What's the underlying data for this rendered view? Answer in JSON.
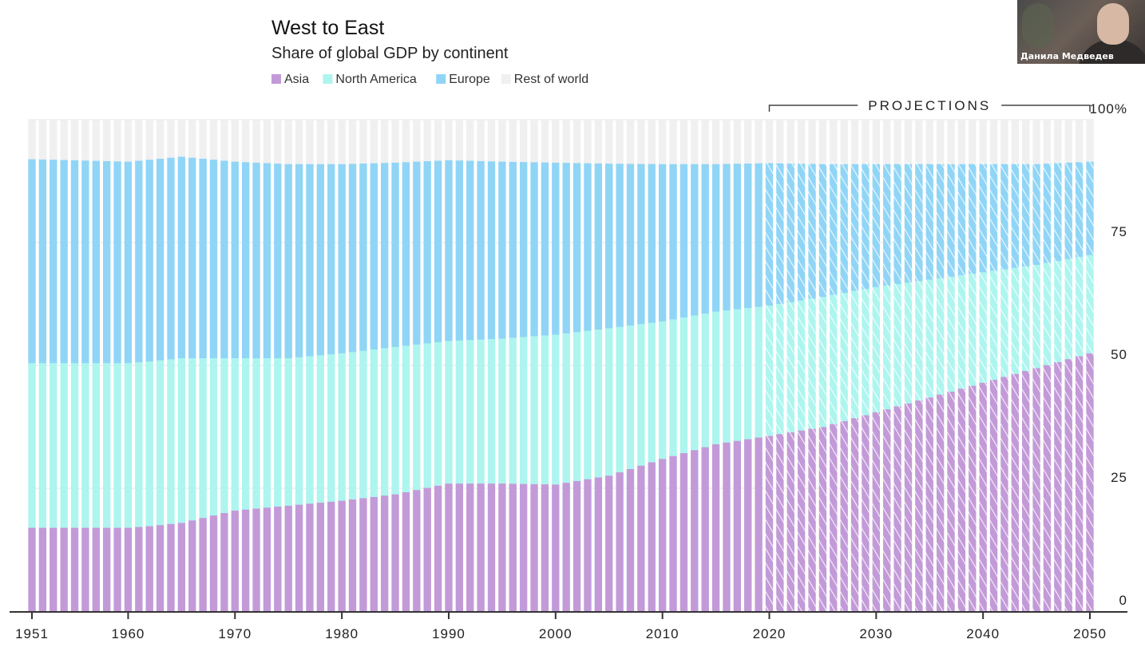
{
  "meeting": {
    "participant_name": "Данила Медведев"
  },
  "chart_data": {
    "type": "bar",
    "stacked": true,
    "title": "West to East",
    "subtitle": "Share of global GDP by continent",
    "annotation": "PROJECTIONS",
    "projection_start": 2020,
    "ylim": [
      0,
      100
    ],
    "yticks": [
      0,
      25,
      50,
      75,
      100
    ],
    "ytick_labels": [
      "0",
      "25",
      "50",
      "75",
      "100%"
    ],
    "xticks": [
      1951,
      1960,
      1970,
      1980,
      1990,
      2000,
      2010,
      2020,
      2030,
      2040,
      2050
    ],
    "x_start": 1951,
    "x_end": 2050,
    "grid": true,
    "legend_position": "top",
    "colors": {
      "Asia": "#c39ad8",
      "North America": "#aef5ef",
      "Europe": "#90d5f6",
      "Rest of world": "#f0f0f0"
    },
    "series": [
      {
        "name": "Asia",
        "points": [
          [
            1951,
            17
          ],
          [
            1960,
            17
          ],
          [
            1962,
            17.3
          ],
          [
            1965,
            18
          ],
          [
            1970,
            20.5
          ],
          [
            1975,
            21.5
          ],
          [
            1980,
            22.5
          ],
          [
            1985,
            23.8
          ],
          [
            1990,
            26
          ],
          [
            1995,
            26
          ],
          [
            2000,
            25.8
          ],
          [
            2005,
            27.6
          ],
          [
            2010,
            31
          ],
          [
            2015,
            34
          ],
          [
            2020,
            35.7
          ],
          [
            2025,
            37.5
          ],
          [
            2030,
            40.5
          ],
          [
            2035,
            43.5
          ],
          [
            2040,
            46.5
          ],
          [
            2045,
            49.5
          ],
          [
            2050,
            52.5
          ]
        ]
      },
      {
        "name": "North America",
        "points": [
          [
            1951,
            33.5
          ],
          [
            1960,
            33.5
          ],
          [
            1965,
            33.5
          ],
          [
            1970,
            31
          ],
          [
            1975,
            30
          ],
          [
            1980,
            30
          ],
          [
            1985,
            30
          ],
          [
            1990,
            29
          ],
          [
            1995,
            29.5
          ],
          [
            2000,
            30.5
          ],
          [
            2005,
            30
          ],
          [
            2010,
            28
          ],
          [
            2015,
            27
          ],
          [
            2020,
            26.5
          ],
          [
            2025,
            26.5
          ],
          [
            2030,
            25.5
          ],
          [
            2035,
            24
          ],
          [
            2040,
            22.5
          ],
          [
            2045,
            21
          ],
          [
            2050,
            20
          ]
        ]
      },
      {
        "name": "Europe",
        "points": [
          [
            1951,
            41.5
          ],
          [
            1960,
            41
          ],
          [
            1965,
            41
          ],
          [
            1970,
            40
          ],
          [
            1975,
            39.5
          ],
          [
            1980,
            38.5
          ],
          [
            1985,
            37.5
          ],
          [
            1990,
            36.8
          ],
          [
            1995,
            36
          ],
          [
            2000,
            35
          ],
          [
            2005,
            33.5
          ],
          [
            2010,
            32
          ],
          [
            2015,
            30
          ],
          [
            2020,
            29
          ],
          [
            2025,
            27
          ],
          [
            2030,
            25
          ],
          [
            2035,
            23.5
          ],
          [
            2040,
            22
          ],
          [
            2045,
            20.5
          ],
          [
            2050,
            19
          ]
        ]
      },
      {
        "name": "Rest of world",
        "points": [
          [
            1951,
            8
          ],
          [
            1960,
            8.5
          ],
          [
            1965,
            7.5
          ],
          [
            1970,
            8.5
          ],
          [
            1975,
            9
          ],
          [
            1980,
            9
          ],
          [
            1985,
            8.7
          ],
          [
            1990,
            8.2
          ],
          [
            1995,
            8.5
          ],
          [
            2000,
            8.7
          ],
          [
            2005,
            8.9
          ],
          [
            2010,
            9
          ],
          [
            2015,
            9
          ],
          [
            2020,
            8.8
          ],
          [
            2025,
            9
          ],
          [
            2030,
            9
          ],
          [
            2035,
            9
          ],
          [
            2040,
            9
          ],
          [
            2045,
            9
          ],
          [
            2050,
            8.5
          ]
        ]
      }
    ]
  }
}
